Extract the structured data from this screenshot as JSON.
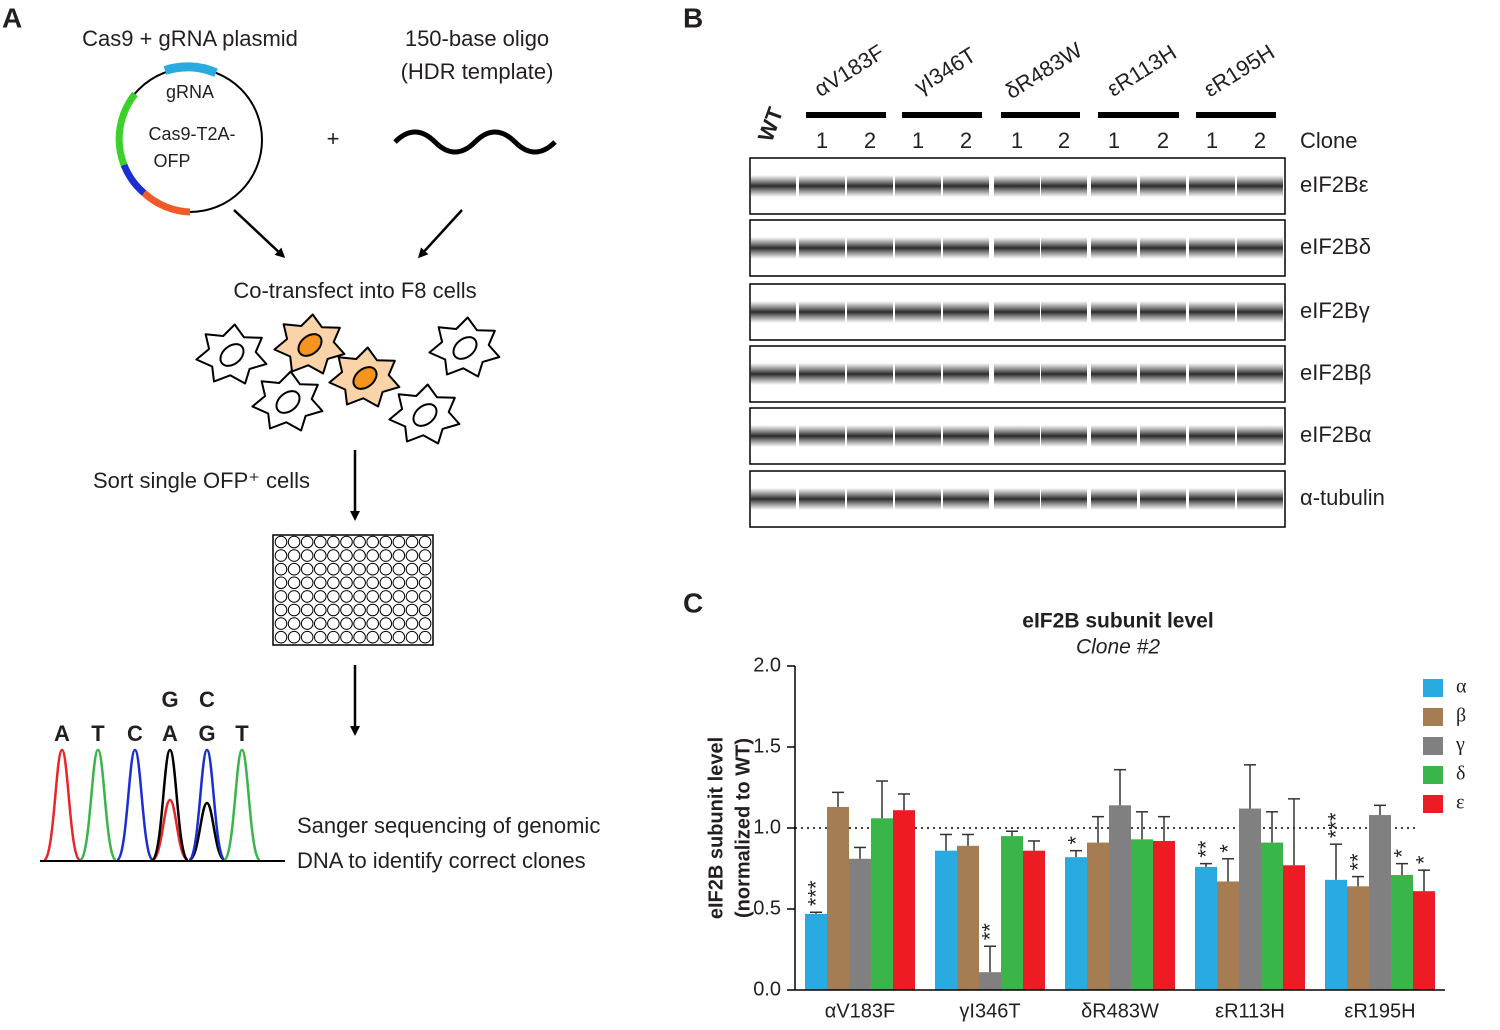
{
  "panel_a": {
    "label": "A",
    "plasmid_title": "Cas9 + gRNA plasmid",
    "plasmid_labels": [
      "gRNA",
      "Cas9-T2A-",
      "OFP"
    ],
    "plus": "+",
    "oligo_title": "150-base oligo",
    "oligo_subtitle": "(HDR template)",
    "step_transfect": "Co-transfect into F8 cells",
    "step_sort": "Sort single OFP⁺ cells",
    "sequencing": [
      "Sanger sequencing of genomic",
      "DNA to identify correct clones"
    ],
    "bases": [
      {
        "letters": [
          "A"
        ],
        "colors": [
          "#e8262a"
        ]
      },
      {
        "letters": [
          "T"
        ],
        "colors": [
          "#39b54a"
        ]
      },
      {
        "letters": [
          "C"
        ],
        "colors": [
          "#1b2fd1"
        ]
      },
      {
        "letters": [
          "G",
          "A"
        ],
        "colors": [
          "#000000",
          "#1b2fd1"
        ]
      },
      {
        "letters": [
          "C",
          "G"
        ],
        "colors": [
          "#1b2fd1",
          "#000000"
        ]
      },
      {
        "letters": [
          "T"
        ],
        "colors": [
          "#39b54a"
        ]
      }
    ]
  },
  "panel_b": {
    "label": "B",
    "wt": "WT",
    "groups": [
      {
        "name": "αV183F",
        "color": "#29abe2",
        "clones": [
          "1",
          "2"
        ]
      },
      {
        "name": "γI346T",
        "color": "#808080",
        "clones": [
          "1",
          "2"
        ]
      },
      {
        "name": "δR483W",
        "color": "#39b54a",
        "clones": [
          "1",
          "2"
        ]
      },
      {
        "name": "εR113H",
        "color": "#f7931e",
        "clones": [
          "1",
          "2"
        ]
      },
      {
        "name": "εR195H",
        "color": "#ed1c24",
        "clones": [
          "1",
          "2"
        ]
      }
    ],
    "clone_header": "Clone",
    "rows": [
      {
        "name": "eIF2Bε",
        "color": "#ed1c24"
      },
      {
        "name": "eIF2Bδ",
        "color": "#39b54a"
      },
      {
        "name": "eIF2Bγ",
        "color": "#808080"
      },
      {
        "name": "eIF2Bβ",
        "color": "#a67c52"
      },
      {
        "name": "eIF2Bα",
        "color": "#29abe2"
      },
      {
        "name": "α-tubulin",
        "color": "#231f20"
      }
    ]
  },
  "panel_c": {
    "label": "C"
  },
  "chart_data": {
    "type": "bar",
    "title": "eIF2B subunit level",
    "subtitle": "Clone #2",
    "ylabel": [
      "eIF2B subunit level",
      "(normalized to WT)"
    ],
    "categories": [
      "αV183F",
      "γI346T",
      "δR483W",
      "εR113H",
      "εR195H"
    ],
    "category_colors": [
      "#29abe2",
      "#808080",
      "#39b54a",
      "#f7931e",
      "#ed1c24"
    ],
    "ylim": [
      0,
      2
    ],
    "yticks": [
      {
        "value": 0,
        "label": "0.0"
      },
      {
        "value": 0.5,
        "label": "0.5"
      },
      {
        "value": 1,
        "label": "1.0"
      },
      {
        "value": 1.5,
        "label": "1.5"
      },
      {
        "value": 2,
        "label": "2.0"
      }
    ],
    "reference_line": 1,
    "legend": "right",
    "series": [
      {
        "name": "α",
        "color": "#29abe2",
        "values": [
          0.47,
          0.86,
          0.82,
          0.76,
          0.68
        ],
        "errors": [
          0.01,
          0.1,
          0.04,
          0.02,
          0.22
        ],
        "significance": [
          "***",
          null,
          "*",
          "**",
          "***"
        ]
      },
      {
        "name": "β",
        "color": "#a67c52",
        "values": [
          1.13,
          0.89,
          0.91,
          0.67,
          0.64
        ],
        "errors": [
          0.09,
          0.07,
          0.16,
          0.14,
          0.06
        ],
        "significance": [
          null,
          null,
          null,
          "*",
          "**"
        ]
      },
      {
        "name": "γ",
        "color": "#808080",
        "values": [
          0.81,
          0.11,
          1.14,
          1.12,
          1.08
        ],
        "errors": [
          0.07,
          0.16,
          0.22,
          0.27,
          0.06
        ],
        "significance": [
          null,
          "**",
          null,
          null,
          null
        ]
      },
      {
        "name": "δ",
        "color": "#39b54a",
        "values": [
          1.06,
          0.95,
          0.93,
          0.91,
          0.71
        ],
        "errors": [
          0.23,
          0.03,
          0.17,
          0.19,
          0.07
        ],
        "significance": [
          null,
          null,
          null,
          null,
          "*"
        ]
      },
      {
        "name": "ε",
        "color": "#ed1c24",
        "values": [
          1.11,
          0.86,
          0.92,
          0.77,
          0.61
        ],
        "errors": [
          0.1,
          0.06,
          0.15,
          0.41,
          0.13
        ],
        "significance": [
          null,
          null,
          null,
          null,
          "*"
        ]
      }
    ]
  }
}
